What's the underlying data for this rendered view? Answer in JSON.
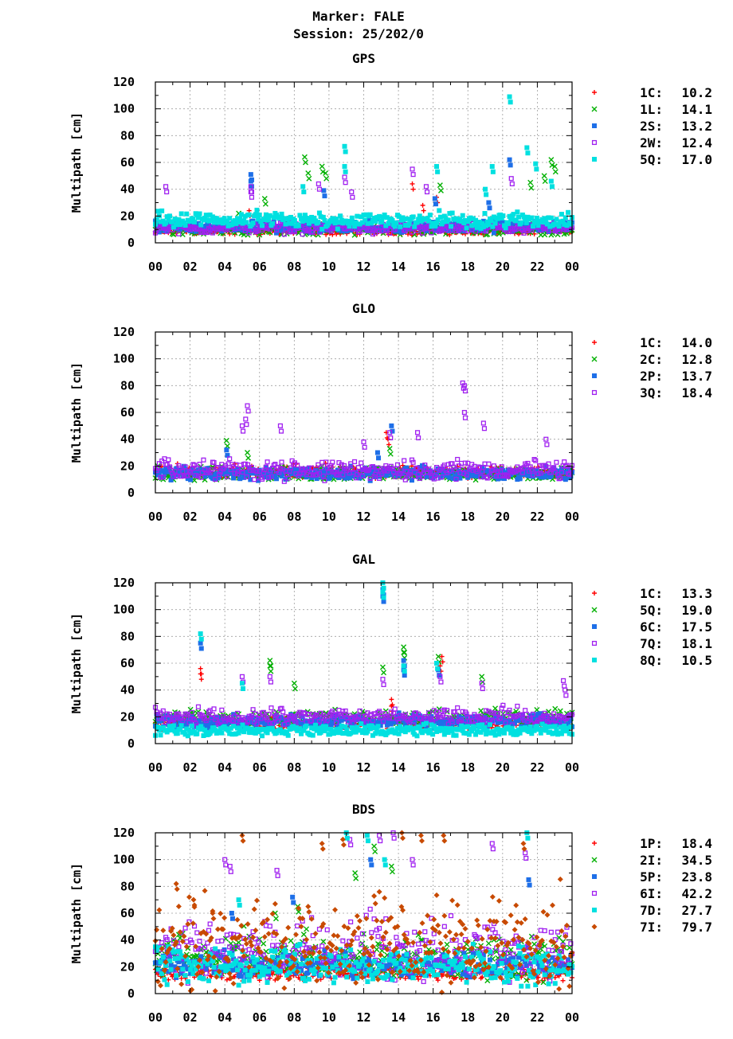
{
  "header": {
    "marker": "Marker: FALE",
    "session": "Session: 25/202/0"
  },
  "chart_data": [
    {
      "type": "scatter",
      "title": "GPS",
      "ylabel": "Multipath [cm]",
      "ylim": [
        0,
        120
      ],
      "yticks": [
        0,
        20,
        40,
        60,
        80,
        100,
        120
      ],
      "xlim": [
        0,
        24
      ],
      "xtick_labels": [
        "00",
        "02",
        "04",
        "06",
        "08",
        "10",
        "12",
        "14",
        "16",
        "18",
        "20",
        "22",
        "00"
      ],
      "grid": true,
      "legend_position": "right",
      "series": [
        {
          "name": "1C:",
          "stat": "10.2",
          "color": "#ff0000",
          "marker": "plus",
          "base": 8,
          "amp": 3,
          "noise": 2,
          "spikes": [
            [
              5.4,
              24
            ],
            [
              14.8,
              44
            ],
            [
              15.4,
              28
            ],
            [
              16.2,
              34
            ],
            [
              20.6,
              20
            ]
          ]
        },
        {
          "name": "1L:",
          "stat": "14.1",
          "color": "#00b000",
          "marker": "cross",
          "base": 9,
          "amp": 4,
          "noise": 3,
          "spikes": [
            [
              8.6,
              64
            ],
            [
              8.8,
              52
            ],
            [
              9.6,
              57
            ],
            [
              9.8,
              52
            ],
            [
              6.3,
              33
            ],
            [
              16.4,
              43
            ],
            [
              21.6,
              45
            ],
            [
              22.4,
              50
            ],
            [
              22.8,
              62
            ],
            [
              23.0,
              57
            ],
            [
              4.8,
              22
            ]
          ]
        },
        {
          "name": "2S:",
          "stat": "13.2",
          "color": "#1e6fe8",
          "marker": "square",
          "base": 11,
          "amp": 4,
          "noise": 3,
          "spikes": [
            [
              5.5,
              51
            ],
            [
              5.5,
              46
            ],
            [
              9.7,
              39
            ],
            [
              20.4,
              62
            ],
            [
              19.2,
              30
            ],
            [
              16.1,
              33
            ]
          ]
        },
        {
          "name": "2W:",
          "stat": "12.4",
          "color": "#a020f0",
          "marker": "square-open",
          "base": 10,
          "amp": 4,
          "noise": 3,
          "spikes": [
            [
              0.6,
              42
            ],
            [
              5.5,
              42
            ],
            [
              5.5,
              38
            ],
            [
              9.4,
              44
            ],
            [
              10.9,
              49
            ],
            [
              11.3,
              38
            ],
            [
              14.8,
              55
            ],
            [
              15.6,
              42
            ],
            [
              20.5,
              48
            ]
          ]
        },
        {
          "name": "5Q:",
          "stat": "17.0",
          "color": "#00e0e0",
          "marker": "square",
          "base": 15,
          "amp": 6,
          "noise": 4,
          "spikes": [
            [
              10.9,
              72
            ],
            [
              10.9,
              57
            ],
            [
              16.2,
              57
            ],
            [
              19.4,
              57
            ],
            [
              20.4,
              109
            ],
            [
              21.4,
              71
            ],
            [
              21.9,
              59
            ],
            [
              22.8,
              46
            ],
            [
              19.0,
              40
            ],
            [
              8.5,
              42
            ]
          ]
        }
      ]
    },
    {
      "type": "scatter",
      "title": "GLO",
      "ylabel": "Multipath [cm]",
      "ylim": [
        0,
        120
      ],
      "yticks": [
        0,
        20,
        40,
        60,
        80,
        100,
        120
      ],
      "xlim": [
        0,
        24
      ],
      "xtick_labels": [
        "00",
        "02",
        "04",
        "06",
        "08",
        "10",
        "12",
        "14",
        "16",
        "18",
        "20",
        "22",
        "00"
      ],
      "grid": true,
      "legend_position": "right",
      "series": [
        {
          "name": "1C:",
          "stat": "14.0",
          "color": "#ff0000",
          "marker": "plus",
          "base": 14,
          "amp": 5,
          "noise": 3,
          "spikes": [
            [
              3.4,
              19
            ],
            [
              13.3,
              45
            ],
            [
              13.4,
              40
            ],
            [
              9.8,
              22
            ]
          ]
        },
        {
          "name": "2C:",
          "stat": "12.8",
          "color": "#00b000",
          "marker": "cross",
          "base": 13,
          "amp": 5,
          "noise": 3,
          "spikes": [
            [
              4.1,
              39
            ],
            [
              5.3,
              30
            ],
            [
              13.5,
              33
            ]
          ]
        },
        {
          "name": "2P:",
          "stat": "13.7",
          "color": "#1e6fe8",
          "marker": "square",
          "base": 13,
          "amp": 5,
          "noise": 3,
          "spikes": [
            [
              4.1,
              32
            ],
            [
              13.6,
              50
            ],
            [
              12.8,
              30
            ]
          ]
        },
        {
          "name": "3Q:",
          "stat": "18.4",
          "color": "#a020f0",
          "marker": "square-open",
          "base": 15,
          "amp": 7,
          "noise": 5,
          "spikes": [
            [
              5.3,
              65
            ],
            [
              5.2,
              55
            ],
            [
              5.0,
              50
            ],
            [
              7.2,
              50
            ],
            [
              12.0,
              38
            ],
            [
              13.5,
              45
            ],
            [
              15.1,
              45
            ],
            [
              17.7,
              82
            ],
            [
              17.8,
              80
            ],
            [
              17.8,
              60
            ],
            [
              18.9,
              52
            ],
            [
              22.5,
              40
            ]
          ]
        }
      ]
    },
    {
      "type": "scatter",
      "title": "GAL",
      "ylabel": "Multipath [cm]",
      "ylim": [
        0,
        120
      ],
      "yticks": [
        0,
        20,
        40,
        60,
        80,
        100,
        120
      ],
      "xlim": [
        0,
        24
      ],
      "xtick_labels": [
        "00",
        "02",
        "04",
        "06",
        "08",
        "10",
        "12",
        "14",
        "16",
        "18",
        "20",
        "22",
        "00"
      ],
      "grid": true,
      "legend_position": "right",
      "series": [
        {
          "name": "1C:",
          "stat": "13.3",
          "color": "#ff0000",
          "marker": "plus",
          "base": 14,
          "amp": 4,
          "noise": 3,
          "spikes": [
            [
              2.6,
              56
            ],
            [
              2.6,
              52
            ],
            [
              13.6,
              33
            ],
            [
              13.6,
              28
            ],
            [
              16.5,
              65
            ],
            [
              16.4,
              58
            ]
          ]
        },
        {
          "name": "5Q:",
          "stat": "19.0",
          "color": "#00b000",
          "marker": "cross",
          "base": 18,
          "amp": 5,
          "noise": 4,
          "spikes": [
            [
              6.6,
              62
            ],
            [
              6.6,
              58
            ],
            [
              8.0,
              45
            ],
            [
              14.3,
              72
            ],
            [
              14.3,
              68
            ],
            [
              16.3,
              65
            ],
            [
              18.8,
              50
            ],
            [
              13.1,
              57
            ]
          ]
        },
        {
          "name": "6C:",
          "stat": "17.5",
          "color": "#1e6fe8",
          "marker": "square",
          "base": 15,
          "amp": 5,
          "noise": 3,
          "spikes": [
            [
              13.1,
              115
            ],
            [
              13.1,
              110
            ],
            [
              2.6,
              75
            ],
            [
              14.3,
              62
            ],
            [
              14.3,
              55
            ],
            [
              16.3,
              55
            ]
          ]
        },
        {
          "name": "7Q:",
          "stat": "18.1",
          "color": "#a020f0",
          "marker": "square-open",
          "base": 18,
          "amp": 6,
          "noise": 4,
          "spikes": [
            [
              5.0,
              50
            ],
            [
              6.6,
              50
            ],
            [
              13.1,
              48
            ],
            [
              16.4,
              50
            ],
            [
              18.8,
              45
            ],
            [
              23.5,
              47
            ],
            [
              23.6,
              40
            ]
          ]
        },
        {
          "name": "8Q:",
          "stat": "10.5",
          "color": "#00e0e0",
          "marker": "square",
          "base": 9,
          "amp": 3,
          "noise": 3,
          "spikes": [
            [
              2.6,
              82
            ],
            [
              13.1,
              120
            ],
            [
              13.1,
              113
            ],
            [
              14.3,
              58
            ],
            [
              16.2,
              60
            ],
            [
              5.0,
              45
            ]
          ]
        }
      ]
    },
    {
      "type": "scatter",
      "title": "BDS",
      "ylabel": "Multipath [cm]",
      "ylim": [
        0,
        120
      ],
      "yticks": [
        0,
        20,
        40,
        60,
        80,
        100,
        120
      ],
      "xlim": [
        0,
        24
      ],
      "xtick_labels": [
        "00",
        "02",
        "04",
        "06",
        "08",
        "10",
        "12",
        "14",
        "16",
        "18",
        "20",
        "22",
        "00"
      ],
      "grid": true,
      "legend_position": "right",
      "series": [
        {
          "name": "1P:",
          "stat": "18.4",
          "color": "#ff0000",
          "marker": "plus",
          "base": 14,
          "amp": 5,
          "noise": 4,
          "spikes": [
            [
              12.5,
              35
            ],
            [
              13.1,
              40
            ],
            [
              14.5,
              30
            ],
            [
              3.0,
              30
            ]
          ]
        },
        {
          "name": "2I:",
          "stat": "34.5",
          "color": "#00b000",
          "marker": "cross",
          "base": 22,
          "amp": 18,
          "noise": 10,
          "spikes": [
            [
              11.5,
              90
            ],
            [
              12.6,
              110
            ],
            [
              13.6,
              95
            ],
            [
              6.9,
              60
            ],
            [
              8.2,
              65
            ]
          ]
        },
        {
          "name": "5P:",
          "stat": "23.8",
          "color": "#1e6fe8",
          "marker": "square",
          "base": 18,
          "amp": 10,
          "noise": 6,
          "spikes": [
            [
              7.9,
              72
            ],
            [
              12.4,
              100
            ],
            [
              21.5,
              85
            ],
            [
              4.4,
              60
            ]
          ]
        },
        {
          "name": "6I:",
          "stat": "42.2",
          "color": "#a020f0",
          "marker": "square-open",
          "base": 25,
          "amp": 28,
          "noise": 12,
          "spikes": [
            [
              4.0,
              100
            ],
            [
              4.3,
              95
            ],
            [
              11.2,
              115
            ],
            [
              12.9,
              118
            ],
            [
              13.7,
              120
            ],
            [
              19.4,
              112
            ],
            [
              21.3,
              105
            ],
            [
              7.0,
              92
            ],
            [
              14.8,
              100
            ]
          ]
        },
        {
          "name": "7D:",
          "stat": "27.7",
          "color": "#00e0e0",
          "marker": "square",
          "base": 16,
          "amp": 16,
          "noise": 8,
          "spikes": [
            [
              11.0,
              120
            ],
            [
              12.2,
              118
            ],
            [
              13.2,
              100
            ],
            [
              21.4,
              120
            ],
            [
              4.8,
              70
            ]
          ]
        },
        {
          "name": "7I:",
          "stat": "79.7",
          "color": "#c84a00",
          "marker": "diamond",
          "base": 25,
          "amp": 40,
          "noise": 18,
          "spikes": [
            [
              5.0,
              118
            ],
            [
              9.6,
              112
            ],
            [
              10.8,
              115
            ],
            [
              14.2,
              120
            ],
            [
              15.3,
              118
            ],
            [
              16.6,
              118
            ],
            [
              21.2,
              112
            ],
            [
              1.2,
              82
            ],
            [
              2.2,
              70
            ],
            [
              3.3,
              60
            ],
            [
              8.8,
              65
            ]
          ]
        }
      ]
    }
  ]
}
